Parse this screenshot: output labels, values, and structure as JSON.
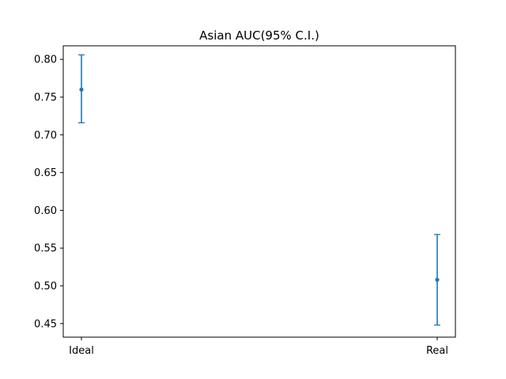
{
  "chart_data": {
    "type": "scatter",
    "title": "Asian AUC(95% C.I.)",
    "xlabel": "",
    "ylabel": "",
    "categories": [
      "Ideal",
      "Real"
    ],
    "series": [
      {
        "values": [
          0.76,
          0.508
        ],
        "ci_lower": [
          0.716,
          0.448
        ],
        "ci_upper": [
          0.806,
          0.568
        ],
        "color": "#1f77b4"
      }
    ],
    "ylim": [
      0.432,
      0.818
    ],
    "yticks": [
      0.45,
      0.5,
      0.55,
      0.6,
      0.65,
      0.7,
      0.75,
      0.8
    ],
    "ytick_labels": [
      "0.45",
      "0.50",
      "0.55",
      "0.60",
      "0.65",
      "0.70",
      "0.75",
      "0.80"
    ],
    "grid": false,
    "legend": "none"
  }
}
